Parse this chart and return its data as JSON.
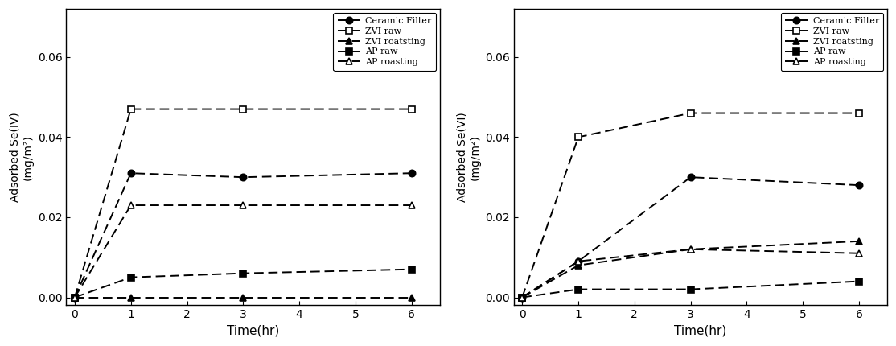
{
  "left": {
    "ylabel_line1": "Adsorbed Se(IV)",
    "ylabel_line2": "(mg/m²)",
    "xlabel": "Time(hr)",
    "ylim": [
      -0.002,
      0.072
    ],
    "yticks": [
      0.0,
      0.02,
      0.04,
      0.06
    ],
    "xlim": [
      -0.15,
      6.5
    ],
    "xticks": [
      0,
      1,
      2,
      3,
      4,
      5,
      6
    ],
    "series": {
      "Ceramic Filter": {
        "x": [
          0,
          1,
          3,
          6
        ],
        "y": [
          0,
          0.031,
          0.03,
          0.031
        ],
        "marker": "o",
        "fillstyle": "full",
        "linestyle": "--",
        "color": "black",
        "markersize": 6
      },
      "ZVI raw": {
        "x": [
          0,
          1,
          3,
          6
        ],
        "y": [
          0,
          0.047,
          0.047,
          0.047
        ],
        "marker": "s",
        "fillstyle": "none",
        "linestyle": "--",
        "color": "black",
        "markersize": 6
      },
      "ZVI roatsting": {
        "x": [
          0,
          1,
          3,
          6
        ],
        "y": [
          0,
          0.0,
          0.0,
          0.0
        ],
        "marker": "^",
        "fillstyle": "full",
        "linestyle": "--",
        "color": "black",
        "markersize": 6
      },
      "AP raw": {
        "x": [
          0,
          1,
          3,
          6
        ],
        "y": [
          0,
          0.005,
          0.006,
          0.007
        ],
        "marker": "s",
        "fillstyle": "full",
        "linestyle": "--",
        "color": "black",
        "markersize": 6
      },
      "AP roasting": {
        "x": [
          0,
          1,
          3,
          6
        ],
        "y": [
          0,
          0.023,
          0.023,
          0.023
        ],
        "marker": "^",
        "fillstyle": "none",
        "linestyle": "--",
        "color": "black",
        "markersize": 6
      }
    }
  },
  "right": {
    "ylabel_line1": "Adsorbed Se(VI)",
    "ylabel_line2": "(mg/m²)",
    "xlabel": "Time(hr)",
    "ylim": [
      -0.002,
      0.072
    ],
    "yticks": [
      0.0,
      0.02,
      0.04,
      0.06
    ],
    "xlim": [
      -0.15,
      6.5
    ],
    "xticks": [
      0,
      1,
      2,
      3,
      4,
      5,
      6
    ],
    "series": {
      "Ceramic Filter": {
        "x": [
          0,
          1,
          3,
          6
        ],
        "y": [
          0,
          0.009,
          0.03,
          0.028
        ],
        "marker": "o",
        "fillstyle": "full",
        "linestyle": "--",
        "color": "black",
        "markersize": 6
      },
      "ZVI raw": {
        "x": [
          0,
          1,
          3,
          6
        ],
        "y": [
          0,
          0.04,
          0.046,
          0.046
        ],
        "marker": "s",
        "fillstyle": "none",
        "linestyle": "--",
        "color": "black",
        "markersize": 6
      },
      "ZVI roatsting": {
        "x": [
          0,
          1,
          3,
          6
        ],
        "y": [
          0,
          0.008,
          0.012,
          0.014
        ],
        "marker": "^",
        "fillstyle": "full",
        "linestyle": "--",
        "color": "black",
        "markersize": 6
      },
      "AP raw": {
        "x": [
          0,
          1,
          3,
          6
        ],
        "y": [
          0,
          0.002,
          0.002,
          0.004
        ],
        "marker": "s",
        "fillstyle": "full",
        "linestyle": "--",
        "color": "black",
        "markersize": 6
      },
      "AP roasting": {
        "x": [
          0,
          1,
          3,
          6
        ],
        "y": [
          0,
          0.009,
          0.012,
          0.011
        ],
        "marker": "^",
        "fillstyle": "none",
        "linestyle": "--",
        "color": "black",
        "markersize": 6
      }
    }
  },
  "legend_order": [
    "Ceramic Filter",
    "ZVI raw",
    "ZVI roatsting",
    "AP raw",
    "AP roasting"
  ],
  "background_color": "#ffffff",
  "font_size": 10,
  "label_fontsize": 11,
  "legend_fontsize": 8,
  "tick_labelsize": 10,
  "linewidth": 1.4,
  "dash_pattern": [
    6,
    3
  ],
  "markersize": 6
}
